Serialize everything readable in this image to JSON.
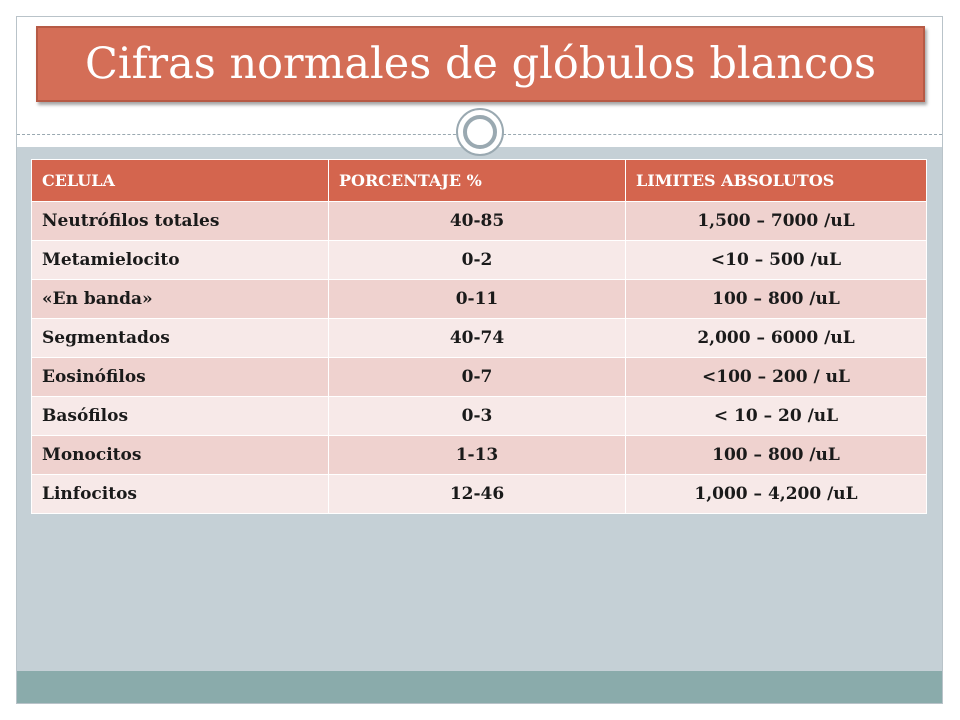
{
  "slide": {
    "title": "Cifras normales de glóbulos blancos"
  },
  "table": {
    "headers": [
      "CELULA",
      "PORCENTAJE  %",
      "LIMITES ABSOLUTOS"
    ],
    "rows": [
      [
        "Neutrófilos totales",
        "40-85",
        "1,500 – 7000 /uL"
      ],
      [
        "Metamielocito",
        "0-2",
        "<10 – 500 /uL"
      ],
      [
        "«En banda»",
        "0-11",
        "100 – 800 /uL"
      ],
      [
        "Segmentados",
        "40-74",
        "2,000 – 6000 /uL"
      ],
      [
        "Eosinófilos",
        "0-7",
        "<100 – 200 / uL"
      ],
      [
        "Basófilos",
        "0-3",
        "< 10 – 20 /uL"
      ],
      [
        "Monocitos",
        "1-13",
        "100 – 800 /uL"
      ],
      [
        "Linfocitos",
        "12-46",
        "1,000 – 4,200 /uL"
      ]
    ]
  },
  "colors": {
    "accent": "#d46e57",
    "header_fill": "#d4654e",
    "row_dark": "#efd2cf",
    "row_light": "#f7e9e8",
    "background": "#c5d0d6",
    "band": "#8aabab"
  }
}
